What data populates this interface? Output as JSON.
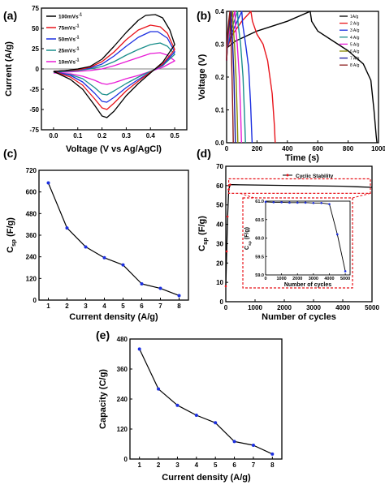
{
  "chart_data": [
    {
      "id": "a",
      "panel_label": "(a)",
      "type": "line",
      "xlabel": "Voltage (V vs Ag/AgCl)",
      "ylabel": "Current (A/g)",
      "xlim": [
        -0.05,
        0.55
      ],
      "ylim": [
        -75,
        75
      ],
      "xticks": [
        "0.0",
        "0.1",
        "0.2",
        "0.3",
        "0.4",
        "0.5"
      ],
      "yticks": [
        "75",
        "50",
        "25",
        "0",
        "-25",
        "-50",
        "-75"
      ],
      "legend_position": "top-left",
      "series": [
        {
          "name": "100mVs",
          "superscript": "-1",
          "color": "#000000",
          "upper": {
            "x": [
              0.0,
              0.05,
              0.1,
              0.15,
              0.2,
              0.25,
              0.3,
              0.35,
              0.38,
              0.42,
              0.45,
              0.48,
              0.5
            ],
            "y": [
              -3,
              -2,
              0,
              3,
              12,
              28,
              45,
              60,
              66,
              67,
              63,
              48,
              30
            ]
          },
          "lower": {
            "x": [
              0.5,
              0.45,
              0.4,
              0.35,
              0.3,
              0.25,
              0.22,
              0.2,
              0.17,
              0.12,
              0.07,
              0.0
            ],
            "y": [
              30,
              8,
              -5,
              -18,
              -33,
              -52,
              -60,
              -58,
              -45,
              -25,
              -13,
              -3
            ]
          }
        },
        {
          "name": "75mVs",
          "superscript": "-1",
          "color": "#e8141b",
          "upper": {
            "x": [
              0.0,
              0.05,
              0.1,
              0.15,
              0.2,
              0.25,
              0.3,
              0.35,
              0.4,
              0.44,
              0.47,
              0.5
            ],
            "y": [
              -3,
              -2,
              -1,
              2,
              9,
              21,
              36,
              48,
              54,
              52,
              44,
              24
            ]
          },
          "lower": {
            "x": [
              0.5,
              0.45,
              0.4,
              0.35,
              0.3,
              0.25,
              0.22,
              0.2,
              0.17,
              0.12,
              0.07,
              0.0
            ],
            "y": [
              24,
              6,
              -4,
              -15,
              -27,
              -42,
              -50,
              -48,
              -37,
              -20,
              -10,
              -3
            ]
          }
        },
        {
          "name": "50mVs",
          "superscript": "-1",
          "color": "#1c2fe0",
          "upper": {
            "x": [
              0.0,
              0.05,
              0.1,
              0.15,
              0.2,
              0.25,
              0.3,
              0.35,
              0.4,
              0.43,
              0.47,
              0.5
            ],
            "y": [
              -3,
              -2,
              -1,
              1,
              6,
              16,
              28,
              39,
              46,
              46,
              38,
              21
            ]
          },
          "lower": {
            "x": [
              0.5,
              0.45,
              0.4,
              0.35,
              0.3,
              0.25,
              0.22,
              0.2,
              0.17,
              0.12,
              0.07,
              0.0
            ],
            "y": [
              21,
              5,
              -4,
              -13,
              -23,
              -35,
              -41,
              -40,
              -30,
              -16,
              -8,
              -3
            ]
          }
        },
        {
          "name": "25mVs",
          "superscript": "-1",
          "color": "#1b8f8c",
          "upper": {
            "x": [
              0.0,
              0.05,
              0.1,
              0.15,
              0.2,
              0.25,
              0.3,
              0.35,
              0.4,
              0.44,
              0.47,
              0.5
            ],
            "y": [
              -4,
              -3,
              -2,
              0,
              3,
              9,
              17,
              24,
              30,
              32,
              28,
              18
            ]
          },
          "lower": {
            "x": [
              0.5,
              0.45,
              0.4,
              0.35,
              0.3,
              0.25,
              0.22,
              0.2,
              0.17,
              0.12,
              0.07,
              0.0
            ],
            "y": [
              18,
              4,
              -3,
              -10,
              -18,
              -27,
              -32,
              -31,
              -23,
              -12,
              -7,
              -4
            ]
          }
        },
        {
          "name": "10mVs",
          "superscript": "-1",
          "color": "#e81ad6",
          "upper": {
            "x": [
              0.0,
              0.05,
              0.1,
              0.15,
              0.2,
              0.25,
              0.3,
              0.35,
              0.4,
              0.44,
              0.47,
              0.5
            ],
            "y": [
              -5,
              -4,
              -3,
              -2,
              0,
              4,
              9,
              14,
              19,
              20,
              17,
              10
            ]
          },
          "lower": {
            "x": [
              0.5,
              0.45,
              0.4,
              0.35,
              0.3,
              0.25,
              0.22,
              0.2,
              0.17,
              0.12,
              0.07,
              0.0
            ],
            "y": [
              10,
              2,
              -3,
              -8,
              -12,
              -17,
              -19,
              -18,
              -14,
              -9,
              -6,
              -5
            ]
          }
        }
      ]
    },
    {
      "id": "b",
      "panel_label": "(b)",
      "type": "line",
      "xlabel": "Time (s)",
      "ylabel": "Voltage (V)",
      "xlim": [
        0,
        1000
      ],
      "ylim": [
        0,
        0.4
      ],
      "xticks": [
        "0",
        "200",
        "400",
        "600",
        "800",
        "1000"
      ],
      "yticks": [
        "0.0",
        "0.1",
        "0.2",
        "0.3",
        "0.4"
      ],
      "legend_position": "top-right",
      "series": [
        {
          "name": "1A/g",
          "color": "#000000",
          "x": [
            0,
            5,
            60,
            200,
            400,
            550,
            560,
            600,
            700,
            800,
            900,
            950,
            970,
            985,
            990
          ],
          "y": [
            0.25,
            0.29,
            0.31,
            0.34,
            0.37,
            0.4,
            0.37,
            0.34,
            0.31,
            0.28,
            0.24,
            0.19,
            0.1,
            0.02,
            0.0
          ]
        },
        {
          "name": "2 A/g",
          "color": "#e8141b",
          "x": [
            0,
            5,
            40,
            100,
            160,
            170,
            200,
            240,
            270,
            300,
            315,
            320
          ],
          "y": [
            0.25,
            0.29,
            0.33,
            0.37,
            0.4,
            0.37,
            0.33,
            0.3,
            0.25,
            0.15,
            0.05,
            0.0
          ]
        },
        {
          "name": "3 A/g",
          "color": "#1c2fe0",
          "x": [
            0,
            3,
            30,
            70,
            100,
            106,
            125,
            145,
            158,
            165,
            168
          ],
          "y": [
            0.25,
            0.29,
            0.33,
            0.37,
            0.4,
            0.36,
            0.3,
            0.23,
            0.12,
            0.03,
            0.0
          ]
        },
        {
          "name": "4 A/g",
          "color": "#1b8f8c",
          "x": [
            0,
            3,
            20,
            50,
            72,
            76,
            92,
            108,
            118,
            124
          ],
          "y": [
            0.25,
            0.29,
            0.33,
            0.37,
            0.4,
            0.36,
            0.3,
            0.2,
            0.08,
            0.0
          ]
        },
        {
          "name": "5 A/g",
          "color": "#e81ad6",
          "x": [
            0,
            2,
            15,
            35,
            55,
            58,
            70,
            84,
            93,
            98
          ],
          "y": [
            0.25,
            0.29,
            0.33,
            0.37,
            0.4,
            0.36,
            0.3,
            0.2,
            0.08,
            0.0
          ]
        },
        {
          "name": "6 A/g",
          "color": "#8a8a00",
          "x": [
            0,
            2,
            10,
            25,
            40,
            42,
            52,
            62,
            70,
            74
          ],
          "y": [
            0.25,
            0.29,
            0.33,
            0.37,
            0.4,
            0.36,
            0.3,
            0.2,
            0.08,
            0.0
          ]
        },
        {
          "name": "7 A/g",
          "color": "#1a1a9c",
          "x": [
            0,
            2,
            8,
            20,
            30,
            32,
            40,
            48,
            54,
            58
          ],
          "y": [
            0.25,
            0.29,
            0.33,
            0.37,
            0.4,
            0.36,
            0.3,
            0.2,
            0.08,
            0.0
          ]
        },
        {
          "name": "8 A/g",
          "color": "#8b1a1a",
          "x": [
            0,
            1,
            6,
            14,
            22,
            24,
            30,
            36,
            41,
            44
          ],
          "y": [
            0.25,
            0.29,
            0.33,
            0.37,
            0.4,
            0.36,
            0.3,
            0.2,
            0.08,
            0.0
          ]
        }
      ]
    },
    {
      "id": "c",
      "panel_label": "(c)",
      "type": "line",
      "xlabel": "Current density (A/g)",
      "ylabel_main": "C",
      "ylabel_sub": "sp",
      "ylabel_rest": " (F/g)",
      "xlim": [
        0.5,
        8.5
      ],
      "ylim": [
        0,
        720
      ],
      "xticks": [
        "1",
        "2",
        "3",
        "4",
        "5",
        "6",
        "7",
        "8"
      ],
      "yticks": [
        "0",
        "120",
        "240",
        "360",
        "480",
        "600",
        "720"
      ],
      "color": "#000000",
      "marker_color": "#1c2fe0",
      "x": [
        1,
        2,
        3,
        4,
        5,
        6,
        7,
        8
      ],
      "y": [
        650,
        400,
        295,
        235,
        195,
        90,
        65,
        25
      ]
    },
    {
      "id": "d",
      "panel_label": "(d)",
      "type": "line",
      "xlabel": "Number of cycles",
      "ylabel_main": "C",
      "ylabel_sub": "sp",
      "ylabel_rest": " (F/g)",
      "xlim": [
        0,
        5000
      ],
      "ylim": [
        0,
        70
      ],
      "xticks": [
        "0",
        "1000",
        "2000",
        "3000",
        "4000",
        "5000"
      ],
      "yticks": [
        "0",
        "10",
        "20",
        "30",
        "40",
        "50",
        "60",
        "70"
      ],
      "legend_position": "top-right",
      "series": [
        {
          "name": "Cyclic Stability",
          "color": "#000000",
          "marker_color": "#e8141b",
          "x": [
            0,
            30,
            60,
            100,
            150,
            250,
            500,
            1000,
            2000,
            3000,
            4000,
            4500,
            5000
          ],
          "y": [
            8,
            26,
            44,
            58,
            60.5,
            60.5,
            60.4,
            60.3,
            60.1,
            59.9,
            59.7,
            59.4,
            59.1
          ]
        }
      ],
      "inset": {
        "type": "line",
        "xlabel": "Number of cycles",
        "ylabel_main": "C",
        "ylabel_sub": "sp",
        "ylabel_rest": " (F/g)",
        "xlim": [
          0,
          5300
        ],
        "ylim": [
          59.0,
          61.0
        ],
        "xticks": [
          "0",
          "1000",
          "2000",
          "3000",
          "4000",
          "5000"
        ],
        "yticks": [
          "59.0",
          "59.5",
          "60.0",
          "60.5",
          "61.0"
        ],
        "color": "#000000",
        "marker_color": "#1c2fe0",
        "x": [
          0,
          500,
          1000,
          1500,
          2000,
          2500,
          3000,
          3500,
          4000,
          4500,
          5000
        ],
        "y": [
          60.98,
          60.97,
          60.97,
          60.96,
          60.96,
          60.96,
          60.95,
          60.95,
          60.92,
          60.1,
          59.1
        ]
      }
    },
    {
      "id": "e",
      "panel_label": "(e)",
      "type": "line",
      "xlabel": "Current density (A/g)",
      "ylabel": "Capacity (C/g)",
      "xlim": [
        0.5,
        8.5
      ],
      "ylim": [
        0,
        480
      ],
      "xticks": [
        "1",
        "2",
        "3",
        "4",
        "5",
        "6",
        "7",
        "8"
      ],
      "yticks": [
        "0",
        "120",
        "240",
        "360",
        "480"
      ],
      "color": "#000000",
      "marker_color": "#1c2fe0",
      "x": [
        1,
        2,
        3,
        4,
        5,
        6,
        7,
        8
      ],
      "y": [
        440,
        280,
        215,
        175,
        145,
        70,
        55,
        20
      ]
    }
  ]
}
